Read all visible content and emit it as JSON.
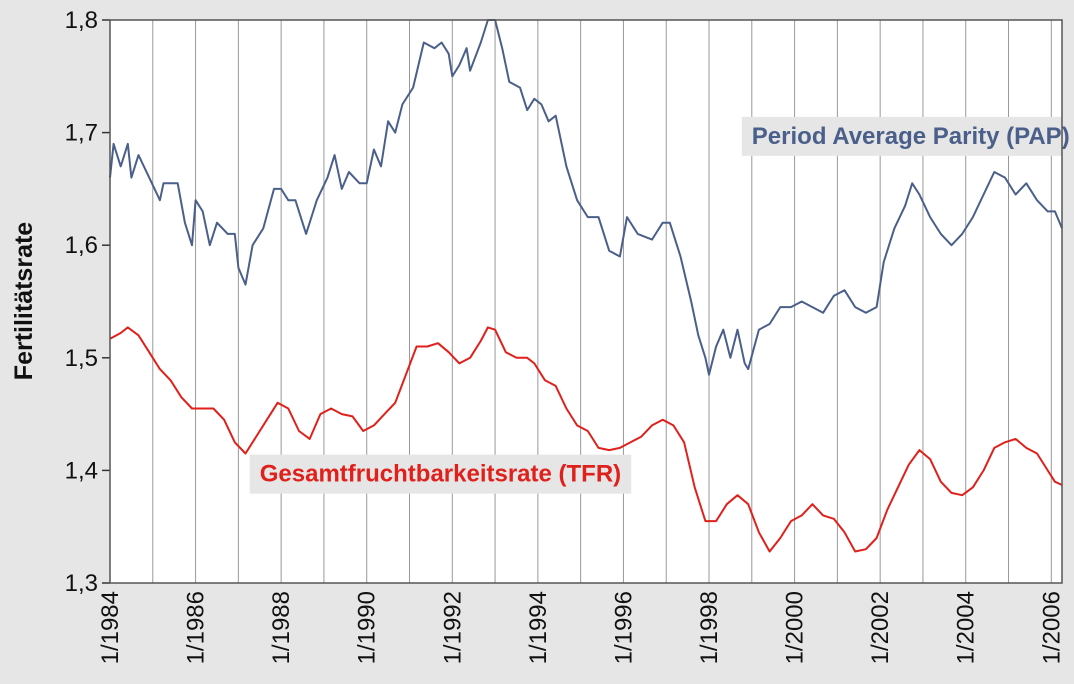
{
  "chart_data": {
    "type": "line",
    "title": "",
    "xlabel": "",
    "ylabel": "Fertilitätsrate",
    "xlim": [
      "1/1984",
      "4/2006"
    ],
    "ylim": [
      1.3,
      1.8
    ],
    "y_ticks": [
      "1,3",
      "1,4",
      "1,5",
      "1,6",
      "1,7",
      "1,8"
    ],
    "x_ticks": [
      "1/1984",
      "1/1986",
      "1/1988",
      "1/1990",
      "1/1992",
      "1/1994",
      "1/1996",
      "1/1998",
      "1/2000",
      "1/2002",
      "1/2004",
      "1/2006"
    ],
    "grid": {
      "vertical_yearly": true,
      "horizontal": false
    },
    "series": [
      {
        "name": "Period Average Parity (PAP)",
        "color": "#4a5f8a",
        "points": [
          [
            "1/1984",
            1.66
          ],
          [
            "2/1984",
            1.69
          ],
          [
            "4/1984",
            1.67
          ],
          [
            "6/1984",
            1.69
          ],
          [
            "7/1984",
            1.66
          ],
          [
            "9/1984",
            1.68
          ],
          [
            "12/1984",
            1.66
          ],
          [
            "3/1985",
            1.64
          ],
          [
            "4/1985",
            1.655
          ],
          [
            "8/1985",
            1.655
          ],
          [
            "10/1985",
            1.62
          ],
          [
            "12/1985",
            1.6
          ],
          [
            "1/1986",
            1.64
          ],
          [
            "3/1986",
            1.63
          ],
          [
            "5/1986",
            1.6
          ],
          [
            "7/1986",
            1.62
          ],
          [
            "10/1986",
            1.61
          ],
          [
            "12/1986",
            1.61
          ],
          [
            "1/1987",
            1.58
          ],
          [
            "3/1987",
            1.565
          ],
          [
            "5/1987",
            1.6
          ],
          [
            "8/1987",
            1.615
          ],
          [
            "11/1987",
            1.65
          ],
          [
            "1/1988",
            1.65
          ],
          [
            "3/1988",
            1.64
          ],
          [
            "5/1988",
            1.64
          ],
          [
            "8/1988",
            1.61
          ],
          [
            "11/1988",
            1.64
          ],
          [
            "2/1989",
            1.66
          ],
          [
            "4/1989",
            1.68
          ],
          [
            "6/1989",
            1.65
          ],
          [
            "8/1989",
            1.665
          ],
          [
            "11/1989",
            1.655
          ],
          [
            "1/1990",
            1.655
          ],
          [
            "3/1990",
            1.685
          ],
          [
            "5/1990",
            1.67
          ],
          [
            "7/1990",
            1.71
          ],
          [
            "9/1990",
            1.7
          ],
          [
            "11/1990",
            1.725
          ],
          [
            "2/1991",
            1.74
          ],
          [
            "5/1991",
            1.78
          ],
          [
            "8/1991",
            1.775
          ],
          [
            "10/1991",
            1.78
          ],
          [
            "12/1991",
            1.77
          ],
          [
            "1/1992",
            1.75
          ],
          [
            "3/1992",
            1.76
          ],
          [
            "5/1992",
            1.775
          ],
          [
            "6/1992",
            1.755
          ],
          [
            "9/1992",
            1.78
          ],
          [
            "11/1992",
            1.8
          ],
          [
            "1/1993",
            1.8
          ],
          [
            "3/1993",
            1.775
          ],
          [
            "5/1993",
            1.745
          ],
          [
            "8/1993",
            1.74
          ],
          [
            "10/1993",
            1.72
          ],
          [
            "12/1993",
            1.73
          ],
          [
            "2/1994",
            1.725
          ],
          [
            "4/1994",
            1.71
          ],
          [
            "6/1994",
            1.715
          ],
          [
            "9/1994",
            1.67
          ],
          [
            "12/1994",
            1.64
          ],
          [
            "3/1995",
            1.625
          ],
          [
            "6/1995",
            1.625
          ],
          [
            "9/1995",
            1.595
          ],
          [
            "12/1995",
            1.59
          ],
          [
            "2/1996",
            1.625
          ],
          [
            "5/1996",
            1.61
          ],
          [
            "9/1996",
            1.605
          ],
          [
            "12/1996",
            1.62
          ],
          [
            "2/1997",
            1.62
          ],
          [
            "5/1997",
            1.59
          ],
          [
            "8/1997",
            1.55
          ],
          [
            "10/1997",
            1.52
          ],
          [
            "12/1997",
            1.5
          ],
          [
            "1/1998",
            1.485
          ],
          [
            "3/1998",
            1.51
          ],
          [
            "5/1998",
            1.525
          ],
          [
            "7/1998",
            1.5
          ],
          [
            "9/1998",
            1.525
          ],
          [
            "11/1998",
            1.495
          ],
          [
            "12/1998",
            1.49
          ],
          [
            "3/1999",
            1.525
          ],
          [
            "6/1999",
            1.53
          ],
          [
            "9/1999",
            1.545
          ],
          [
            "12/1999",
            1.545
          ],
          [
            "3/2000",
            1.55
          ],
          [
            "6/2000",
            1.545
          ],
          [
            "9/2000",
            1.54
          ],
          [
            "12/2000",
            1.555
          ],
          [
            "3/2001",
            1.56
          ],
          [
            "6/2001",
            1.545
          ],
          [
            "9/2001",
            1.54
          ],
          [
            "12/2001",
            1.545
          ],
          [
            "2/2002",
            1.585
          ],
          [
            "5/2002",
            1.615
          ],
          [
            "8/2002",
            1.635
          ],
          [
            "10/2002",
            1.655
          ],
          [
            "12/2002",
            1.645
          ],
          [
            "3/2003",
            1.625
          ],
          [
            "6/2003",
            1.61
          ],
          [
            "9/2003",
            1.6
          ],
          [
            "12/2003",
            1.61
          ],
          [
            "3/2004",
            1.625
          ],
          [
            "6/2004",
            1.645
          ],
          [
            "9/2004",
            1.665
          ],
          [
            "12/2004",
            1.66
          ],
          [
            "3/2005",
            1.645
          ],
          [
            "6/2005",
            1.655
          ],
          [
            "9/2005",
            1.64
          ],
          [
            "12/2005",
            1.63
          ],
          [
            "2/2006",
            1.63
          ],
          [
            "4/2006",
            1.615
          ]
        ]
      },
      {
        "name": "Gesamtfruchtbarkeitsrate (TFR)",
        "color": "#e0201b",
        "points": [
          [
            "1/1984",
            1.517
          ],
          [
            "4/1984",
            1.522
          ],
          [
            "6/1984",
            1.527
          ],
          [
            "9/1984",
            1.52
          ],
          [
            "12/1984",
            1.505
          ],
          [
            "3/1985",
            1.49
          ],
          [
            "6/1985",
            1.48
          ],
          [
            "9/1985",
            1.465
          ],
          [
            "12/1985",
            1.455
          ],
          [
            "3/1986",
            1.455
          ],
          [
            "6/1986",
            1.455
          ],
          [
            "9/1986",
            1.445
          ],
          [
            "12/1986",
            1.425
          ],
          [
            "3/1987",
            1.415
          ],
          [
            "6/1987",
            1.43
          ],
          [
            "9/1987",
            1.445
          ],
          [
            "12/1987",
            1.46
          ],
          [
            "3/1988",
            1.455
          ],
          [
            "6/1988",
            1.435
          ],
          [
            "9/1988",
            1.428
          ],
          [
            "12/1988",
            1.45
          ],
          [
            "3/1989",
            1.455
          ],
          [
            "6/1989",
            1.45
          ],
          [
            "9/1989",
            1.448
          ],
          [
            "12/1989",
            1.435
          ],
          [
            "3/1990",
            1.44
          ],
          [
            "6/1990",
            1.45
          ],
          [
            "9/1990",
            1.46
          ],
          [
            "12/1990",
            1.485
          ],
          [
            "3/1991",
            1.51
          ],
          [
            "6/1991",
            1.51
          ],
          [
            "9/1991",
            1.513
          ],
          [
            "12/1991",
            1.505
          ],
          [
            "3/1992",
            1.495
          ],
          [
            "6/1992",
            1.5
          ],
          [
            "9/1992",
            1.515
          ],
          [
            "11/1992",
            1.527
          ],
          [
            "1/1993",
            1.525
          ],
          [
            "4/1993",
            1.505
          ],
          [
            "7/1993",
            1.5
          ],
          [
            "10/1993",
            1.5
          ],
          [
            "12/1993",
            1.495
          ],
          [
            "3/1994",
            1.48
          ],
          [
            "6/1994",
            1.475
          ],
          [
            "9/1994",
            1.455
          ],
          [
            "12/1994",
            1.44
          ],
          [
            "3/1995",
            1.435
          ],
          [
            "6/1995",
            1.42
          ],
          [
            "9/1995",
            1.418
          ],
          [
            "12/1995",
            1.42
          ],
          [
            "3/1996",
            1.425
          ],
          [
            "6/1996",
            1.43
          ],
          [
            "9/1996",
            1.44
          ],
          [
            "12/1996",
            1.445
          ],
          [
            "3/1997",
            1.44
          ],
          [
            "6/1997",
            1.425
          ],
          [
            "9/1997",
            1.385
          ],
          [
            "12/1997",
            1.355
          ],
          [
            "3/1998",
            1.355
          ],
          [
            "6/1998",
            1.37
          ],
          [
            "9/1998",
            1.378
          ],
          [
            "12/1998",
            1.37
          ],
          [
            "3/1999",
            1.345
          ],
          [
            "6/1999",
            1.328
          ],
          [
            "9/1999",
            1.34
          ],
          [
            "12/1999",
            1.355
          ],
          [
            "3/2000",
            1.36
          ],
          [
            "6/2000",
            1.37
          ],
          [
            "9/2000",
            1.36
          ],
          [
            "12/2000",
            1.357
          ],
          [
            "3/2001",
            1.345
          ],
          [
            "6/2001",
            1.328
          ],
          [
            "9/2001",
            1.33
          ],
          [
            "12/2001",
            1.34
          ],
          [
            "3/2002",
            1.365
          ],
          [
            "6/2002",
            1.385
          ],
          [
            "9/2002",
            1.405
          ],
          [
            "12/2002",
            1.418
          ],
          [
            "3/2003",
            1.41
          ],
          [
            "6/2003",
            1.39
          ],
          [
            "9/2003",
            1.38
          ],
          [
            "12/2003",
            1.378
          ],
          [
            "3/2004",
            1.385
          ],
          [
            "6/2004",
            1.4
          ],
          [
            "9/2004",
            1.42
          ],
          [
            "12/2004",
            1.425
          ],
          [
            "3/2005",
            1.428
          ],
          [
            "6/2005",
            1.42
          ],
          [
            "9/2005",
            1.415
          ],
          [
            "12/2005",
            1.4
          ],
          [
            "2/2006",
            1.39
          ],
          [
            "4/2006",
            1.387
          ]
        ]
      }
    ],
    "annotations": [
      {
        "text": "Period Average Parity (PAP)",
        "series": 0,
        "anchor_date": "1/1999",
        "anchor_value": 1.69
      },
      {
        "text": "Gesamtfruchtbarkeitsrate (TFR)",
        "series": 1,
        "anchor_date": "7/1987",
        "anchor_value": 1.39
      }
    ]
  }
}
